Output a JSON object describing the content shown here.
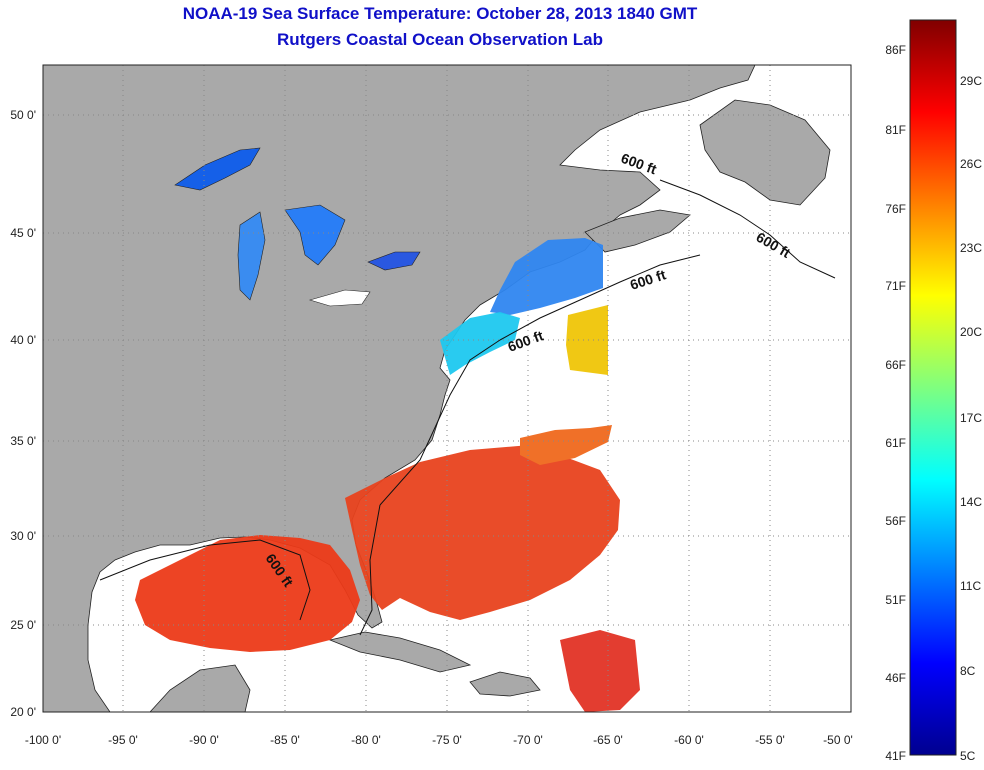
{
  "title": "NOAA-19 Sea Surface Temperature:  October 28, 2013 1840 GMT",
  "subtitle": "Rutgers Coastal Ocean Observation Lab",
  "map": {
    "lat_labels": [
      "50 0'",
      "45 0'",
      "40 0'",
      "35 0'",
      "30 0'",
      "25 0'",
      "20 0'"
    ],
    "lon_labels": [
      "-100 0'",
      "-95 0'",
      "-90 0'",
      "-85 0'",
      "-80 0'",
      "-75 0'",
      "-70 0'",
      "-65 0'",
      "-60 0'",
      "-55 0'",
      "-50 0'"
    ],
    "isobath_label": "600 ft",
    "colors": {
      "land": "#a9a9a9",
      "no_data": "#ffffff",
      "grid": "#888888"
    }
  },
  "colorbar": {
    "fahrenheit_labels": [
      "86F",
      "81F",
      "76F",
      "71F",
      "66F",
      "61F",
      "56F",
      "51F",
      "46F",
      "41F"
    ],
    "celsius_labels": [
      "29C",
      "26C",
      "23C",
      "20C",
      "17C",
      "14C",
      "11C",
      "8C",
      "5C"
    ]
  }
}
